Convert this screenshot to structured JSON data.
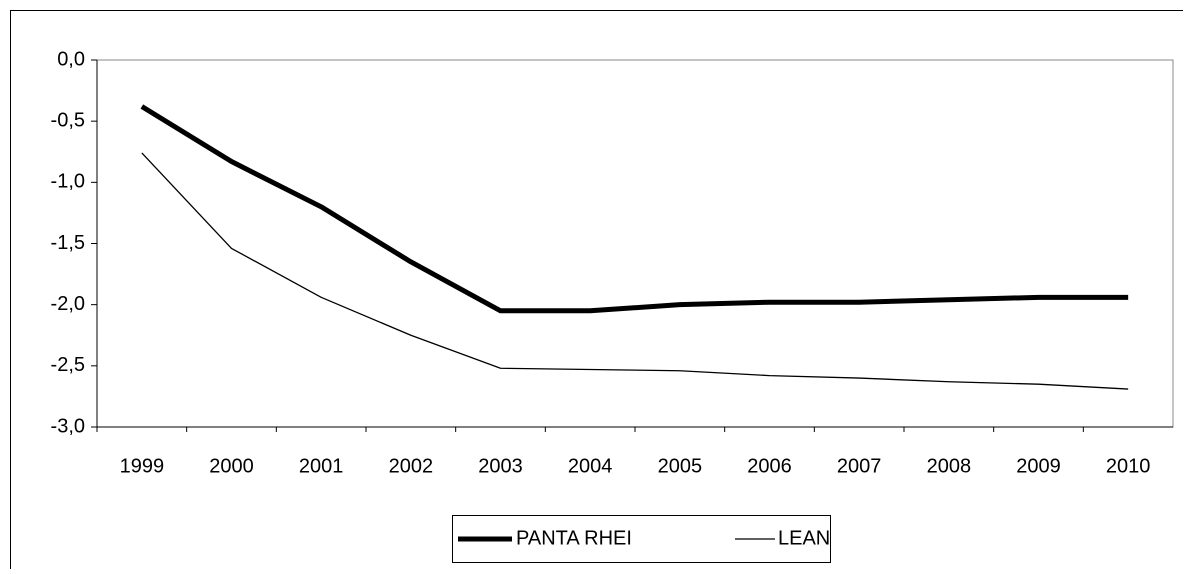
{
  "chart_data": {
    "type": "line",
    "categories": [
      "1999",
      "2000",
      "2001",
      "2002",
      "2003",
      "2004",
      "2005",
      "2006",
      "2007",
      "2008",
      "2009",
      "2010"
    ],
    "series": [
      {
        "name": "PANTA RHEI",
        "color": "#000000",
        "values": [
          -0.38,
          -0.83,
          -1.2,
          -1.65,
          -2.05,
          -2.05,
          -2.0,
          -1.98,
          -1.98,
          -1.96,
          -1.94,
          -1.94
        ]
      },
      {
        "name": "LEAN",
        "color": "#000000",
        "values": [
          -0.76,
          -1.54,
          -1.94,
          -2.25,
          -2.52,
          -2.53,
          -2.54,
          -2.58,
          -2.6,
          -2.63,
          -2.65,
          -2.69
        ]
      }
    ],
    "ylim": [
      -3.0,
      0.0
    ],
    "yticks": [
      {
        "value": 0.0,
        "label": "0,0"
      },
      {
        "value": -0.5,
        "label": "-0,5"
      },
      {
        "value": -1.0,
        "label": "-1,0"
      },
      {
        "value": -1.5,
        "label": "-1,5"
      },
      {
        "value": -2.0,
        "label": "-2,0"
      },
      {
        "value": -2.5,
        "label": "-2,5"
      },
      {
        "value": -3.0,
        "label": "-3,0"
      }
    ],
    "grid": false,
    "legend": "bottom"
  }
}
